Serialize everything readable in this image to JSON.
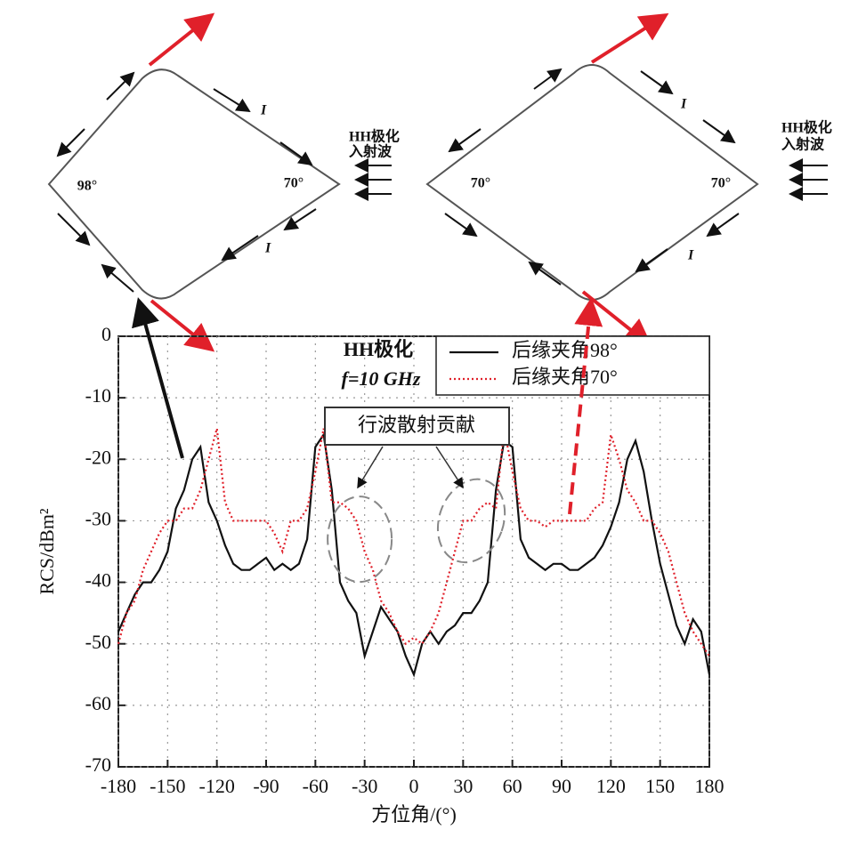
{
  "chart_data": {
    "type": "line",
    "xlabel": "方位角/(°)",
    "ylabel": "RCS/dBm²",
    "annotations": [
      "HH极化",
      "f=10 GHz",
      "行波散射贡献"
    ],
    "x": [
      -180,
      -175,
      -170,
      -165,
      -160,
      -155,
      -150,
      -145,
      -140,
      -135,
      -130,
      -125,
      -120,
      -115,
      -110,
      -105,
      -100,
      -95,
      -90,
      -85,
      -80,
      -75,
      -70,
      -65,
      -60,
      -55,
      -50,
      -45,
      -40,
      -35,
      -30,
      -25,
      -20,
      -15,
      -10,
      -5,
      0,
      5,
      10,
      15,
      20,
      25,
      30,
      35,
      40,
      45,
      50,
      55,
      60,
      65,
      70,
      75,
      80,
      85,
      90,
      95,
      100,
      105,
      110,
      115,
      120,
      125,
      130,
      135,
      140,
      145,
      150,
      155,
      160,
      165,
      170,
      175,
      180
    ],
    "series": [
      {
        "name": "后缘夹角98°",
        "color": "#111111",
        "style": "solid",
        "values": [
          -48,
          -45,
          -42,
          -40,
          -40,
          -38,
          -35,
          -28,
          -25,
          -20,
          -18,
          -27,
          -30,
          -34,
          -37,
          -38,
          -38,
          -37,
          -36,
          -38,
          -37,
          -38,
          -37,
          -33,
          -18,
          -16,
          -25,
          -40,
          -43,
          -45,
          -52,
          -48,
          -44,
          -46,
          -48,
          -52,
          -55,
          -50,
          -48,
          -50,
          -48,
          -47,
          -45,
          -45,
          -43,
          -40,
          -25,
          -17,
          -18,
          -33,
          -36,
          -37,
          -38,
          -37,
          -37,
          -38,
          -38,
          -37,
          -36,
          -34,
          -31,
          -27,
          -20,
          -17,
          -22,
          -30,
          -37,
          -42,
          -47,
          -50,
          -46,
          -48,
          -55
        ]
      },
      {
        "name": "后缘夹角70°",
        "color": "#e0202a",
        "style": "dotted",
        "values": [
          -50,
          -45,
          -43,
          -38,
          -35,
          -32,
          -30,
          -30,
          -28,
          -28,
          -25,
          -20,
          -15,
          -27,
          -30,
          -30,
          -30,
          -30,
          -30,
          -32,
          -35,
          -30,
          -30,
          -28,
          -22,
          -15,
          -27,
          -27,
          -28,
          -30,
          -35,
          -38,
          -43,
          -45,
          -48,
          -50,
          -49,
          -50,
          -48,
          -45,
          -40,
          -35,
          -30,
          -30,
          -28,
          -27,
          -28,
          -15,
          -22,
          -28,
          -30,
          -30,
          -31,
          -30,
          -30,
          -30,
          -30,
          -30,
          -28,
          -27,
          -16,
          -20,
          -25,
          -27,
          -30,
          -30,
          -32,
          -35,
          -40,
          -45,
          -48,
          -50,
          -52
        ]
      }
    ],
    "xlim": [
      -180,
      180
    ],
    "ylim": [
      -70,
      0
    ],
    "xticks": [
      -180,
      -150,
      -120,
      -90,
      -60,
      -30,
      0,
      30,
      60,
      90,
      120,
      150,
      180
    ],
    "yticks": [
      0,
      -10,
      -20,
      -30,
      -40,
      -50,
      -60,
      -70
    ],
    "grid": true,
    "legend": "upper right"
  },
  "diagrams": [
    {
      "angles": [
        "98°",
        "70°"
      ],
      "edge_labels": [
        "I",
        "I"
      ],
      "wave_label": [
        "HH极化",
        "入射波"
      ]
    },
    {
      "angles": [
        "70°",
        "70°"
      ],
      "edge_labels": [
        "I",
        "I"
      ],
      "wave_label": [
        "HH极化",
        "入射波"
      ]
    }
  ]
}
